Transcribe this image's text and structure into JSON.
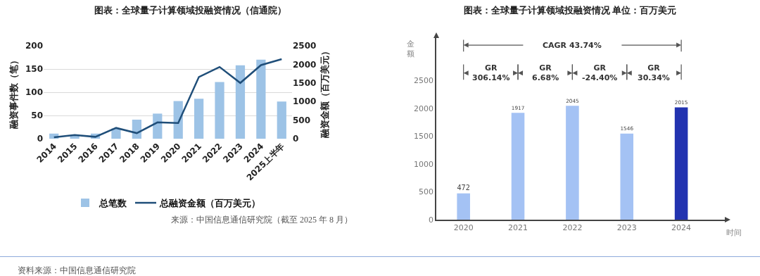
{
  "chart_data": [
    {
      "type": "bar",
      "title": "图表：全球量子计算领域投融资情况（信通院）",
      "categories": [
        "2014",
        "2015",
        "2016",
        "2017",
        "2018",
        "2019",
        "2020",
        "2021",
        "2022",
        "2023",
        "2024",
        "2025上半年"
      ],
      "series": [
        {
          "name": "总笔数",
          "type": "bar",
          "color": "#9dc3e6",
          "values": [
            11,
            8,
            11,
            22,
            41,
            54,
            81,
            86,
            122,
            158,
            170,
            80
          ]
        },
        {
          "name": "总融资金额（百万美元）",
          "type": "line",
          "axis": "y2",
          "color": "#1f4e79",
          "values": [
            40,
            100,
            50,
            290,
            150,
            440,
            420,
            1660,
            1930,
            1500,
            1980,
            2140
          ]
        }
      ],
      "ylabel": "融资事件数（笔）",
      "y2label": "融资金额（百万美元）",
      "ylim": [
        0,
        200
      ],
      "yticks": [
        0,
        50,
        100,
        150,
        200
      ],
      "y2lim": [
        0,
        2500
      ],
      "y2ticks": [
        0,
        500,
        1000,
        1500,
        2000,
        2500
      ],
      "grid": "y",
      "legend": "bottom",
      "marker": "none",
      "line_style": "solid",
      "annotations": [
        "来源：中国信息通信研究院（截至 2025 年 8 月）",
        "资料来源：中国信息通信研究院"
      ]
    },
    {
      "type": "bar",
      "title": "图表：全球量子计算领域投融资情况 单位：百万美元",
      "categories": [
        "2020",
        "2021",
        "2022",
        "2023",
        "2024"
      ],
      "values": [
        472,
        1917,
        2045,
        1546,
        2015
      ],
      "colors": [
        "#a4c2f4",
        "#a4c2f4",
        "#a4c2f4",
        "#a4c2f4",
        "#2233b0"
      ],
      "xlabel": "时间",
      "ylabel": "金额",
      "ylim": [
        0,
        3260
      ],
      "yticks": [
        0,
        500,
        1000,
        1500,
        2000,
        2500
      ],
      "grid": false,
      "legend": false,
      "data_labels": true,
      "annotations": [
        "CAGR 43.74%",
        "GR\n306.14%",
        "GR\n6.68%",
        "GR\n-24.40%",
        "GR\n30.34%"
      ]
    }
  ]
}
